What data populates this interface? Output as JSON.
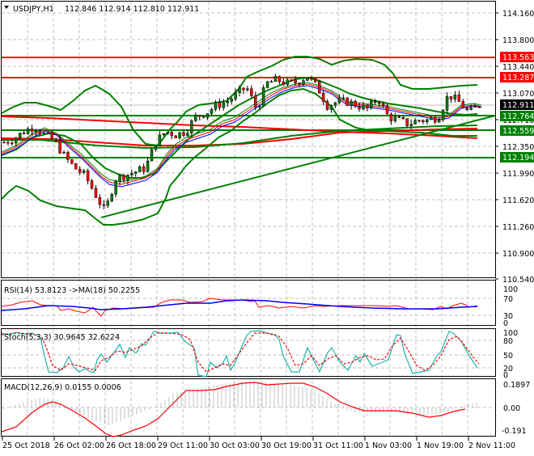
{
  "header": {
    "symbol_timeframe": "USDJPY,H1",
    "ohlc": "112.846 112.914 112.810 112.911",
    "collapse_icon": "triangle-down-icon"
  },
  "colors": {
    "background": "#ffffff",
    "grid": "#c0c0c0",
    "border": "#000000",
    "bull_candle": "#008000",
    "bear_candle": "#ff0000",
    "bollinger": "#008000",
    "support_line": "#008000",
    "resistance_line": "#ff0000",
    "ma_fast": "#008000",
    "ma_mid": "#ff0000",
    "ma_slow": "#0000ff",
    "rsi": "#ff0000",
    "rsi_ma": "#0000ff",
    "stoch_main": "#20b2aa",
    "stoch_signal": "#ff0000",
    "macd_hist": "#c0c0c0",
    "macd_signal": "#ff0000",
    "current_price_tag": "#000000"
  },
  "price_axis": {
    "ticks": [
      "114.160",
      "113.800",
      "113.440",
      "113.070",
      "112.710",
      "112.350",
      "111.990",
      "111.620",
      "111.260",
      "110.900",
      "110.540"
    ],
    "tags": [
      {
        "value": "113.563",
        "color": "#ff0000"
      },
      {
        "value": "113.287",
        "color": "#ff0000"
      },
      {
        "value": "112.911",
        "color": "#000000"
      },
      {
        "value": "112.764",
        "color": "#008000"
      },
      {
        "value": "112.559",
        "color": "#008000"
      },
      {
        "value": "112.194",
        "color": "#008000"
      }
    ]
  },
  "time_axis": {
    "labels": [
      "25 Oct 2018",
      "26 Oct 02:00",
      "26 Oct 18:00",
      "29 Oct 11:00",
      "30 Oct 03:00",
      "30 Oct 19:00",
      "31 Oct 11:00",
      "1 Nov 03:00",
      "1 Nov 19:00",
      "2 Nov 11:00"
    ]
  },
  "rsi_panel": {
    "label": "RSI(14) 53.8123  ->MA(18) 50.2255",
    "ticks": [
      "100",
      "70",
      "30",
      "0"
    ]
  },
  "stoch_panel": {
    "label": "Stoch(5,3,3) 30.9645 32.6224",
    "ticks": [
      "100",
      "80",
      "50",
      "20",
      "0"
    ]
  },
  "macd_panel": {
    "label": "MACD(12,26,9) 0.0155 0.0006",
    "ticks": [
      "0.1897",
      "0.00",
      "-0.191"
    ]
  },
  "chart_data": [
    {
      "type": "candlestick",
      "title": "USDJPY,H1",
      "ohlc_last": {
        "open": 112.846,
        "high": 112.914,
        "low": 112.81,
        "close": 112.911
      },
      "ylim": [
        110.54,
        114.16
      ],
      "grid": true,
      "x_tick_labels": [
        "25 Oct 2018",
        "26 Oct 02:00",
        "26 Oct 18:00",
        "29 Oct 11:00",
        "30 Oct 03:00",
        "30 Oct 19:00",
        "31 Oct 11:00",
        "1 Nov 03:00",
        "1 Nov 19:00",
        "2 Nov 11:00"
      ],
      "y_tick_labels": [
        "114.160",
        "113.800",
        "113.440",
        "113.070",
        "112.710",
        "112.350",
        "111.990",
        "111.620",
        "111.260",
        "110.900",
        "110.540"
      ],
      "horizontal_levels": [
        {
          "value": 113.563,
          "color": "red",
          "kind": "resistance"
        },
        {
          "value": 113.287,
          "color": "red",
          "kind": "resistance"
        },
        {
          "value": 112.764,
          "color": "green",
          "kind": "support"
        },
        {
          "value": 112.559,
          "color": "green",
          "kind": "support"
        },
        {
          "value": 112.194,
          "color": "green",
          "kind": "support"
        }
      ],
      "trendline": {
        "from": {
          "x": "26 Oct 18:00",
          "y": 111.38
        },
        "to": {
          "x": "2 Nov 11:00",
          "y": 112.78
        }
      },
      "close_series_approx": [
        112.4,
        112.45,
        112.55,
        112.62,
        112.5,
        112.42,
        112.2,
        112.05,
        111.95,
        111.7,
        111.45,
        111.9,
        111.95,
        112.0,
        112.05,
        112.4,
        112.55,
        112.5,
        112.55,
        112.75,
        112.8,
        112.9,
        112.95,
        113.05,
        113.15,
        112.85,
        113.2,
        113.25,
        113.2,
        113.22,
        113.3,
        113.15,
        112.9,
        112.95,
        112.95,
        112.9,
        112.85,
        113.0,
        112.75,
        112.7,
        112.65,
        112.7,
        112.7,
        112.75,
        113.05,
        112.95,
        112.8,
        112.911
      ],
      "indicators": [
        "Bollinger Bands",
        "Moving Averages (3)",
        "Long-period MAs (red/green)"
      ]
    },
    {
      "type": "line",
      "title": "RSI(14) 53.8123 ->MA(18) 50.2255",
      "ylim": [
        0,
        100
      ],
      "y_tick_labels": [
        "100",
        "70",
        "30",
        "0"
      ],
      "series": [
        {
          "name": "RSI(14)",
          "last": 53.8123,
          "values_approx": [
            52,
            56,
            60,
            54,
            52,
            46,
            44,
            40,
            32,
            48,
            48,
            50,
            52,
            64,
            66,
            62,
            68,
            68,
            64,
            60,
            58,
            54,
            46,
            48,
            44,
            46,
            46,
            50,
            44,
            42,
            40,
            50,
            58,
            52,
            53.8
          ]
        },
        {
          "name": "MA(18)",
          "last": 50.2255,
          "values_approx": [
            48,
            50,
            52,
            52,
            51,
            50,
            48,
            48,
            48,
            50,
            52,
            54,
            58,
            58,
            60,
            60,
            60,
            58,
            56,
            54,
            52,
            50,
            48,
            47,
            46,
            46,
            45,
            45,
            46,
            47,
            48,
            49,
            50,
            50.2
          ]
        }
      ]
    },
    {
      "type": "line",
      "title": "Stoch(5,3,3) 30.9645 32.6224",
      "ylim": [
        0,
        100
      ],
      "y_tick_labels": [
        "100",
        "80",
        "50",
        "20",
        "0"
      ],
      "series": [
        {
          "name": "Main",
          "last": 30.9645
        },
        {
          "name": "Signal",
          "last": 32.6224
        }
      ]
    },
    {
      "type": "bar+line",
      "title": "MACD(12,26,9) 0.0155 0.0006",
      "ylim": [
        -0.191,
        0.1897
      ],
      "y_tick_labels": [
        "0.1897",
        "0.00",
        "-0.191"
      ],
      "series": [
        {
          "name": "MACD histogram",
          "last": 0.0155
        },
        {
          "name": "Signal",
          "last": 0.0006
        }
      ]
    }
  ]
}
